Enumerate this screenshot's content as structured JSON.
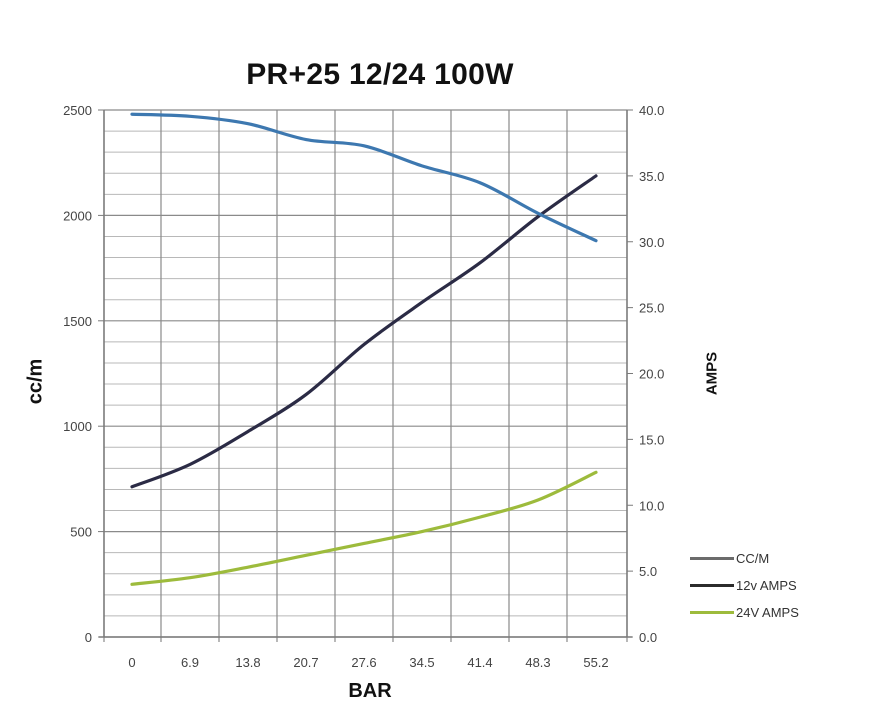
{
  "chart_data": {
    "type": "line",
    "title": "PR+25 12/24 100W",
    "xlabel": "BAR",
    "ylabel": "cc/m",
    "ylabel_right": "AMPS",
    "categories": [
      "0",
      "6.9",
      "13.8",
      "20.7",
      "27.6",
      "34.5",
      "41.4",
      "48.3",
      "55.2"
    ],
    "ylim": [
      0,
      2500
    ],
    "ylim_right": [
      0,
      40
    ],
    "yticks": [
      "0",
      "500",
      "1000",
      "1500",
      "2000",
      "2500"
    ],
    "yticks_right": [
      "0.0",
      "5.0",
      "10.0",
      "15.0",
      "20.0",
      "25.0",
      "30.0",
      "35.0",
      "40.0"
    ],
    "grid": true,
    "legend_position": "right-bottom",
    "series": [
      {
        "name": "CC/M",
        "axis": "left",
        "color": "#3d78b0",
        "legend_color": "#6b6b6b",
        "values": [
          2480,
          2470,
          2435,
          2360,
          2330,
          2235,
          2155,
          2010,
          1880
        ]
      },
      {
        "name": "12v AMPS",
        "axis": "right",
        "color": "#2b2b45",
        "legend_color": "#2b2b2b",
        "values": [
          11.4,
          13.1,
          15.6,
          18.4,
          22.2,
          25.4,
          28.4,
          31.9,
          35.0
        ]
      },
      {
        "name": "24V AMPS",
        "axis": "right",
        "color": "#9dbb3c",
        "legend_color": "#9dbb3c",
        "values": [
          4.0,
          4.5,
          5.3,
          6.2,
          7.1,
          8.0,
          9.1,
          10.4,
          12.5
        ]
      }
    ]
  }
}
